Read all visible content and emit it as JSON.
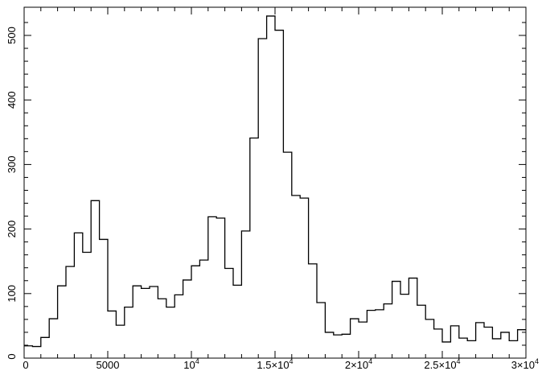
{
  "chart_data": {
    "type": "histogram",
    "title": "",
    "xlabel": "",
    "ylabel": "",
    "xlim": [
      0,
      30000
    ],
    "ylim": [
      0,
      530
    ],
    "bin_width": 500,
    "bin_start": 0,
    "counts": [
      19,
      18,
      32,
      61,
      112,
      142,
      194,
      164,
      244,
      184,
      73,
      51,
      79,
      112,
      108,
      111,
      92,
      79,
      98,
      121,
      143,
      152,
      219,
      217,
      139,
      113,
      197,
      341,
      495,
      530,
      508,
      319,
      252,
      248,
      146,
      86,
      40,
      36,
      37,
      61,
      56,
      74,
      75,
      84,
      119,
      99,
      124,
      82,
      60,
      45,
      25,
      50,
      31,
      27,
      55,
      48,
      30,
      40,
      27,
      44
    ],
    "x_ticks": [
      {
        "value": 0,
        "label": "0",
        "exp": ""
      },
      {
        "value": 5000,
        "label": "5000",
        "exp": ""
      },
      {
        "value": 10000,
        "label": "10",
        "exp": "4"
      },
      {
        "value": 15000,
        "label": "1.5×10",
        "exp": "4"
      },
      {
        "value": 20000,
        "label": "2×10",
        "exp": "4"
      },
      {
        "value": 25000,
        "label": "2.5×10",
        "exp": "4"
      },
      {
        "value": 30000,
        "label": "3×10",
        "exp": "4"
      }
    ],
    "y_ticks": [
      {
        "value": 0,
        "label": "0"
      },
      {
        "value": 100,
        "label": "100"
      },
      {
        "value": 200,
        "label": "200"
      },
      {
        "value": 300,
        "label": "300"
      },
      {
        "value": 400,
        "label": "400"
      },
      {
        "value": 500,
        "label": "500"
      }
    ],
    "grid": false,
    "colors": {
      "line": "#000000",
      "background": "#ffffff"
    }
  }
}
